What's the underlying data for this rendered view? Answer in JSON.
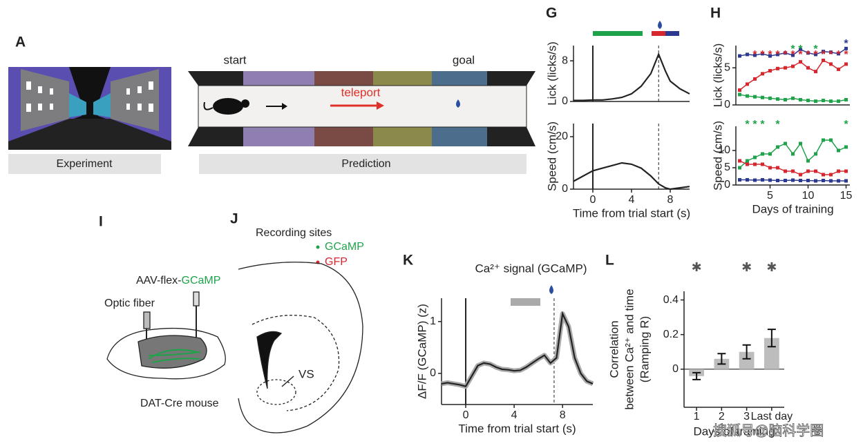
{
  "figure": {
    "A": {
      "letter": "A",
      "start": "start",
      "goal": "goal",
      "teleport": "teleport",
      "experiment": "Experiment",
      "prediction": "Prediction"
    },
    "G": {
      "letter": "G"
    },
    "H": {
      "letter": "H"
    },
    "I": {
      "letter": "I",
      "vector": "AAV-flex-",
      "gene": "GCaMP",
      "fiber": "Optic fiber",
      "mouse": "DAT-Cre mouse"
    },
    "J": {
      "letter": "J",
      "title": "Recording sites",
      "legend": [
        "GCaMP",
        "GFP"
      ],
      "region": "VS"
    },
    "K": {
      "letter": "K"
    },
    "L": {
      "letter": "L"
    },
    "watermark": "搜狐号@脑科学圈"
  },
  "chart_data": [
    {
      "type": "line",
      "ylabel": "Lick (licks/s)",
      "xlim": [
        -2,
        10
      ],
      "ylim": [
        0,
        11
      ],
      "yticks": [
        0,
        8
      ],
      "events": [
        {
          "x": 0,
          "style": "solid"
        },
        {
          "x": 6.8,
          "style": "dashed"
        }
      ],
      "x": [
        -2,
        -1,
        0,
        1,
        2,
        3,
        4,
        5,
        6,
        6.8,
        7.5,
        8,
        9,
        10
      ],
      "series": [
        {
          "color": "#222222",
          "values": [
            0.2,
            0.2,
            0.3,
            0.3,
            0.5,
            0.8,
            1.5,
            3,
            5.5,
            9.3,
            6,
            4,
            2.5,
            1.5
          ]
        }
      ]
    },
    {
      "type": "line",
      "ylabel": "Speed (cm/s)",
      "xlabel": "Time from trial start (s)",
      "xlim": [
        -2,
        10
      ],
      "ylim": [
        0,
        25
      ],
      "yticks": [
        0,
        20
      ],
      "xticks": [
        0,
        4,
        8
      ],
      "events": [
        {
          "x": 0,
          "style": "solid"
        },
        {
          "x": 6.8,
          "style": "dashed"
        }
      ],
      "x": [
        -2,
        -1,
        0,
        1,
        2,
        3,
        4,
        5,
        6,
        6.8,
        7.5,
        8,
        9,
        10
      ],
      "series": [
        {
          "color": "#222222",
          "values": [
            3,
            5,
            7,
            8,
            9,
            10,
            9.5,
            8,
            5,
            2,
            0.5,
            0,
            0.5,
            1
          ]
        }
      ]
    },
    {
      "type": "line",
      "ylabel": "Lick (licks/s)",
      "xlim": [
        0.5,
        15.5
      ],
      "ylim": [
        0,
        8
      ],
      "yticks": [
        0,
        5
      ],
      "markers": true,
      "x": [
        1,
        2,
        3,
        4,
        5,
        6,
        7,
        8,
        9,
        10,
        11,
        12,
        13,
        14,
        15
      ],
      "series": [
        {
          "color": "#2b3990",
          "values": [
            6.6,
            6.8,
            6.7,
            6.9,
            6.6,
            6.8,
            7.0,
            6.7,
            7.5,
            7.0,
            6.8,
            7.2,
            7.1,
            6.9,
            7.6
          ]
        },
        {
          "color": "#d7262e",
          "values": [
            2.0,
            2.8,
            3.5,
            4.2,
            4.6,
            4.9,
            5.0,
            5.2,
            5.8,
            5.0,
            4.5,
            6.0,
            5.5,
            4.8,
            5.5
          ]
        },
        {
          "color": "#1fa34a",
          "values": [
            1.4,
            1.2,
            1.1,
            1.0,
            0.9,
            0.8,
            0.7,
            0.9,
            0.7,
            0.6,
            0.5,
            0.6,
            0.5,
            0.5,
            0.7
          ]
        }
      ],
      "stars": [
        {
          "text": "*",
          "color": "#2b3990",
          "days": [
            15
          ]
        },
        {
          "text": "*",
          "color": "#1fa34a",
          "days": [
            8,
            9,
            11
          ]
        },
        {
          "text": "*",
          "color": "#d7262e",
          "days": [
            3,
            4,
            5,
            6,
            7,
            8,
            9,
            10,
            11,
            12,
            13,
            14,
            15
          ]
        }
      ]
    },
    {
      "type": "line",
      "ylabel": "Speed (cm/s)",
      "xlabel": "Days of training",
      "xlim": [
        0.5,
        15.5
      ],
      "ylim": [
        0,
        17
      ],
      "yticks": [
        0,
        5,
        10
      ],
      "xticks": [
        5,
        10,
        15
      ],
      "markers": true,
      "x": [
        1,
        2,
        3,
        4,
        5,
        6,
        7,
        8,
        9,
        10,
        11,
        12,
        13,
        14,
        15
      ],
      "series": [
        {
          "color": "#1fa34a",
          "values": [
            5,
            7,
            8,
            9,
            9,
            11,
            12,
            9,
            12,
            7,
            9,
            13,
            13,
            10,
            11
          ]
        },
        {
          "color": "#d7262e",
          "values": [
            7,
            6,
            6,
            6,
            5,
            5,
            4,
            4,
            3,
            4,
            4,
            3,
            3,
            4,
            4
          ]
        },
        {
          "color": "#2b3990",
          "values": [
            1.5,
            1.5,
            1.4,
            1.5,
            1.4,
            1.3,
            1.3,
            1.4,
            1.3,
            1.3,
            1.2,
            1.3,
            1.2,
            1.2,
            1.2
          ]
        }
      ],
      "stars": [
        {
          "text": "*",
          "color": "#1fa34a",
          "days": [
            2,
            3,
            4,
            6,
            15
          ]
        }
      ]
    },
    {
      "type": "line",
      "title": "Ca²⁺ signal (GCaMP)",
      "ylabel": "ΔF/F (GCaMP) (z)",
      "xlabel": "Time from trial start (s)",
      "xlim": [
        -2,
        10.5
      ],
      "ylim": [
        -0.6,
        1.45
      ],
      "yticks": [
        0,
        1
      ],
      "xticks": [
        0,
        4,
        8
      ],
      "band": true,
      "events": [
        {
          "x": 0,
          "style": "solid"
        },
        {
          "x": 7.3,
          "style": "dashed"
        }
      ],
      "x": [
        -2,
        -1.5,
        -1,
        -0.5,
        0,
        0.5,
        1,
        1.5,
        2,
        2.5,
        3,
        3.5,
        4,
        4.5,
        5,
        5.5,
        6,
        6.5,
        7,
        7.5,
        8,
        8.5,
        9,
        9.5,
        10,
        10.5
      ],
      "series": [
        {
          "color": "#222222",
          "values": [
            -0.2,
            -0.18,
            -0.2,
            -0.22,
            -0.25,
            -0.05,
            0.15,
            0.2,
            0.18,
            0.12,
            0.08,
            0.07,
            0.05,
            0.06,
            0.12,
            0.2,
            0.28,
            0.35,
            0.2,
            0.3,
            1.15,
            0.9,
            0.3,
            0,
            -0.15,
            -0.2
          ]
        }
      ]
    },
    {
      "type": "bar",
      "ylabel": [
        "Correlation",
        "between Ca²⁺ and time",
        "(Ramping R)"
      ],
      "xlabel": "Days of training",
      "categories": [
        "1",
        "2",
        "3",
        "Last day"
      ],
      "values": [
        -0.04,
        0.06,
        0.1,
        0.18
      ],
      "errors": [
        0.02,
        0.03,
        0.04,
        0.05
      ],
      "color": "#bdbdbd",
      "ylim": [
        -0.22,
        0.45
      ],
      "yticks": [
        0,
        0.2,
        0.4
      ],
      "marker": "✱",
      "significant": [
        true,
        false,
        true,
        true
      ]
    }
  ]
}
